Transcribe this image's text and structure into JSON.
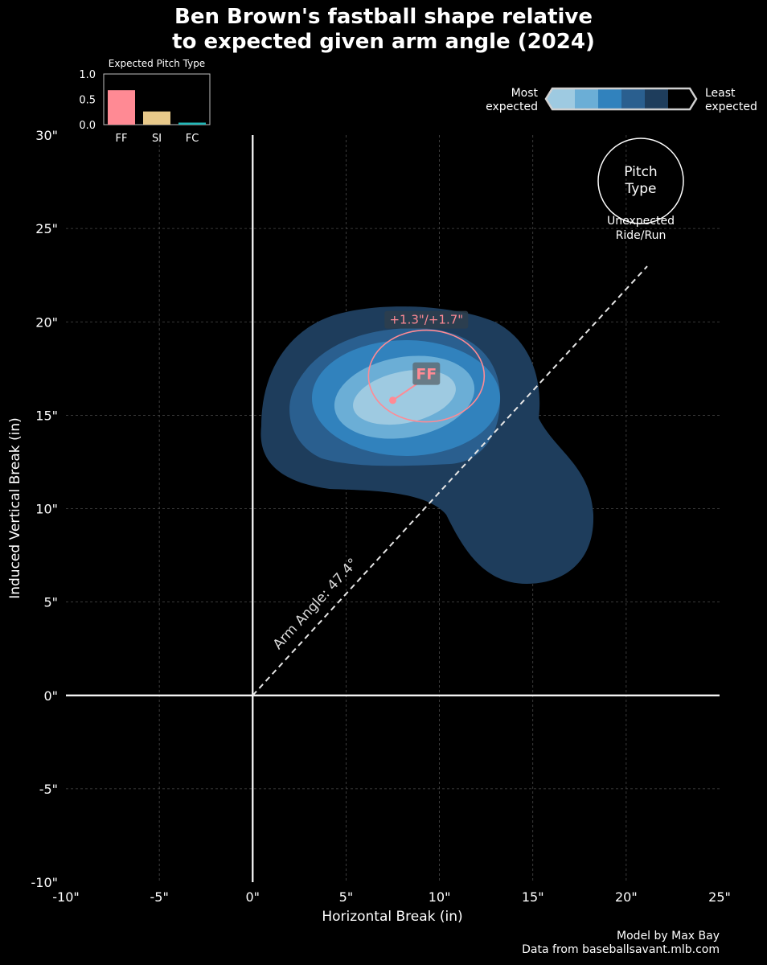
{
  "title_line1": "Ben Brown's fastball shape relative",
  "title_line2": "to expected given arm angle (2024)",
  "footer": {
    "model": "Model by Max Bay",
    "source": "Data from baseballsavant.mlb.com"
  },
  "legend": {
    "most_line1": "Most",
    "most_line2": "expected",
    "least_line1": "Least",
    "least_line2": "expected",
    "colors": [
      "#9ecae1",
      "#6baed6",
      "#3182bd",
      "#2a5f8f",
      "#1e3d5c",
      "#000000"
    ]
  },
  "key": {
    "circle_line1": "Pitch",
    "circle_line2": "Type",
    "sub_line1": "Unexpected",
    "sub_line2": "Ride/Run"
  },
  "chart_data": [
    {
      "type": "scatter",
      "title": "",
      "xlabel": "Horizontal Break (in)",
      "ylabel": "Induced Vertical Break (in)",
      "xlim": [
        -10,
        25
      ],
      "ylim": [
        -10,
        30
      ],
      "x_ticks": [
        -10,
        -5,
        0,
        5,
        10,
        15,
        20,
        25
      ],
      "y_ticks": [
        -10,
        -5,
        0,
        5,
        10,
        15,
        20,
        25,
        30
      ],
      "tick_unit": "\"",
      "grid": true,
      "arm_angle_label": "Arm Angle: 47.4°",
      "arm_angle_deg": 47.4,
      "density_colors": [
        "#1e3d5c",
        "#2a5f8f",
        "#3182bd",
        "#6baed6",
        "#9ecae1"
      ],
      "pitch": {
        "label": "FF",
        "actual": {
          "x": 7.5,
          "y": 15.8
        },
        "expected": {
          "x": 9.3,
          "y": 17.1
        },
        "diff_label": "+1.3\"/+1.7\"",
        "color": "#ff8a94"
      }
    },
    {
      "type": "bar",
      "title": "Expected Pitch Type",
      "categories": [
        "FF",
        "SI",
        "FC"
      ],
      "values": [
        0.68,
        0.26,
        0.04
      ],
      "colors": [
        "#ff8a94",
        "#e8c98a",
        "#22b8b8"
      ],
      "ylim": [
        0,
        1.0
      ],
      "y_ticks": [
        "0.0",
        "0.5",
        "1.0"
      ]
    }
  ]
}
